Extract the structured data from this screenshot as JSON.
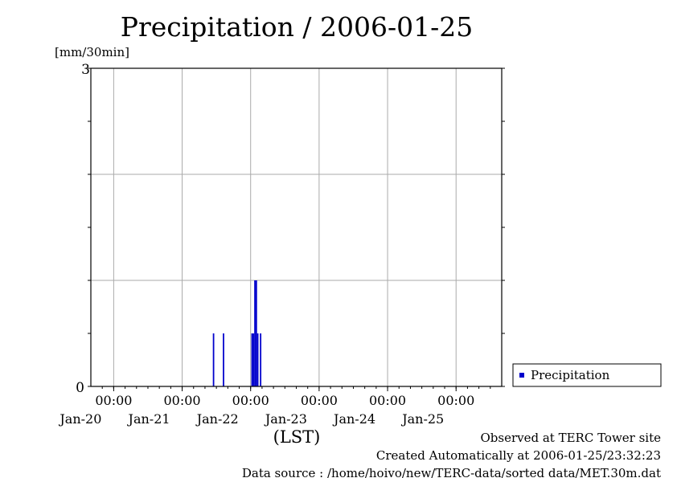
{
  "chart_data": {
    "type": "bar",
    "title": "Precipitation / 2006-01-25",
    "ylabel": "[mm/30min]",
    "xlabel": "(LST)",
    "ylim": [
      0,
      3
    ],
    "y_ticks_labeled": [
      "0",
      "3"
    ],
    "y_gridlines": [
      1,
      2
    ],
    "x_range": [
      "2006-01-19T16:00",
      "2006-01-25T16:00"
    ],
    "x_ticks": [
      {
        "x": "2006-01-20T00:00",
        "time": "00:00",
        "date": "Jan-20"
      },
      {
        "x": "2006-01-21T00:00",
        "time": "00:00",
        "date": "Jan-21"
      },
      {
        "x": "2006-01-22T00:00",
        "time": "00:00",
        "date": "Jan-22"
      },
      {
        "x": "2006-01-23T00:00",
        "time": "00:00",
        "date": "Jan-23"
      },
      {
        "x": "2006-01-24T00:00",
        "time": "00:00",
        "date": "Jan-24"
      },
      {
        "x": "2006-01-25T00:00",
        "time": "00:00",
        "date": "Jan-25"
      }
    ],
    "series": [
      {
        "name": "Precipitation",
        "color": "#0000cc",
        "x": [
          "2006-01-21T11:00",
          "2006-01-21T14:30",
          "2006-01-22T00:30",
          "2006-01-22T01:00",
          "2006-01-22T01:30",
          "2006-01-22T02:00",
          "2006-01-22T02:30",
          "2006-01-22T03:30"
        ],
        "values": [
          0.5,
          0.5,
          0.5,
          0.5,
          1.0,
          1.0,
          0.5,
          0.5
        ]
      }
    ],
    "grid": true,
    "legend": "right"
  },
  "legend": {
    "label": "Precipitation"
  },
  "footer": {
    "observed": "Observed at TERC Tower site",
    "created": "Created Automatically at 2006-01-25/23:32:23",
    "source": "Data source : /home/hoivo/new/TERC-data/sorted  data/MET.30m.dat"
  }
}
